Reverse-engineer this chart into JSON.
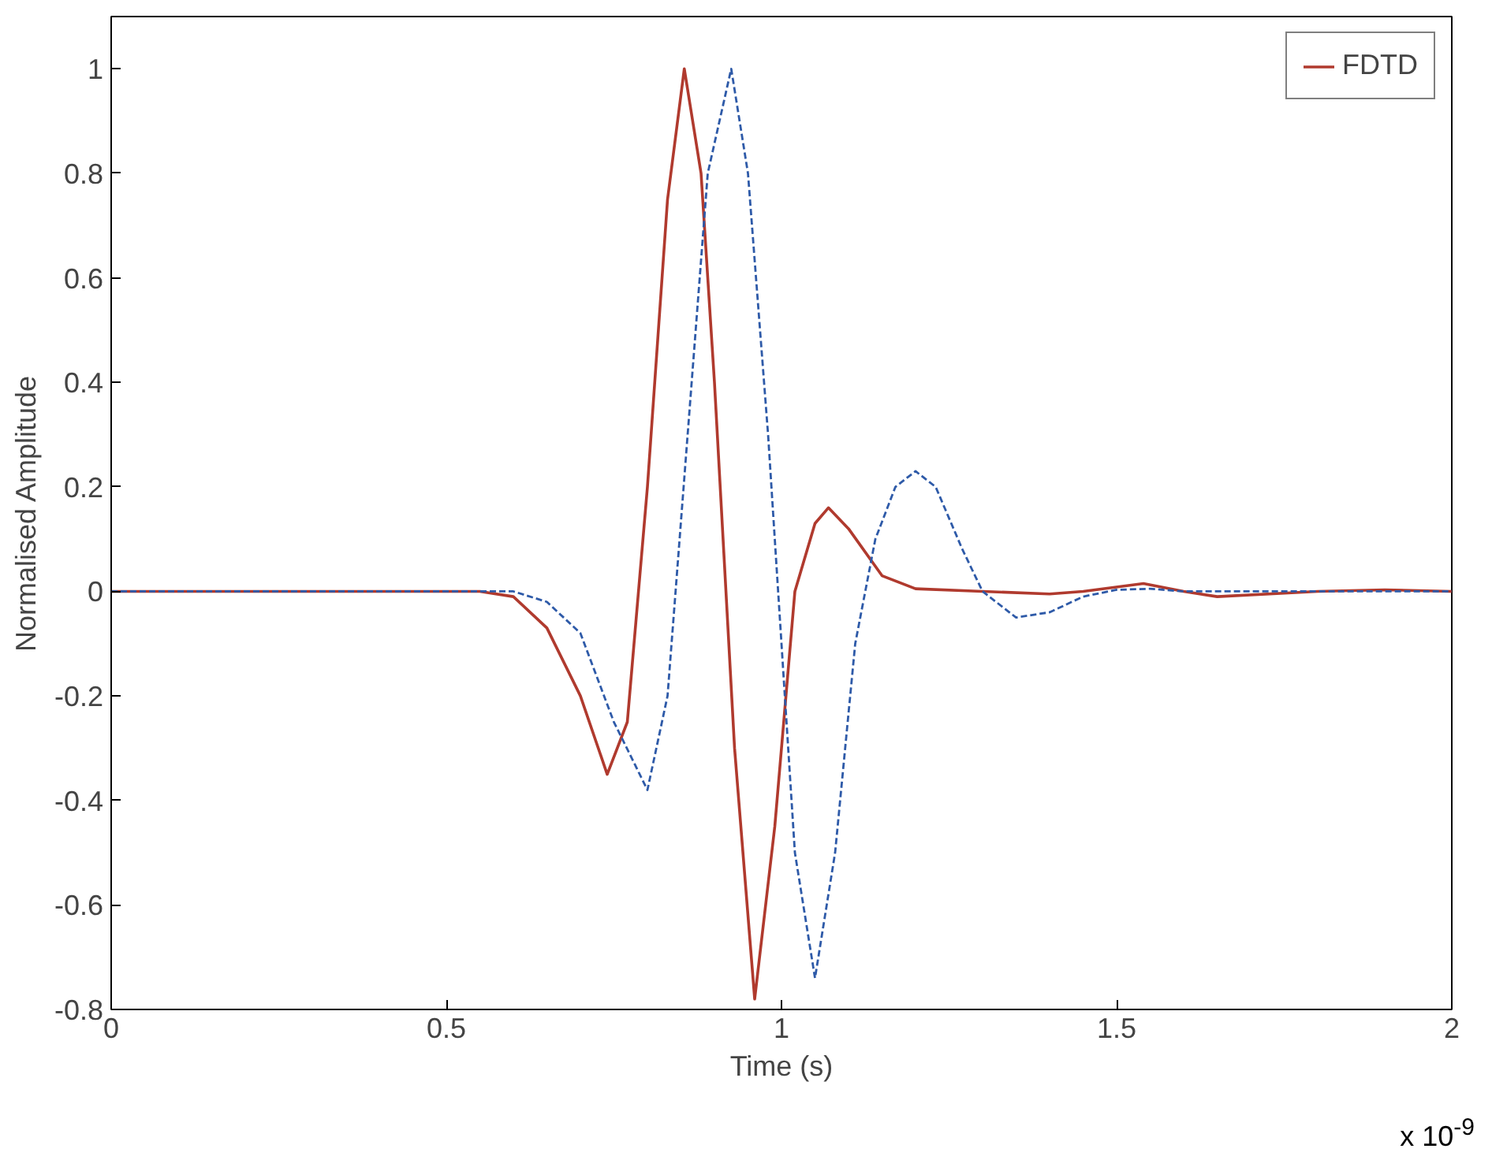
{
  "chart_data": {
    "type": "line",
    "xlabel": "Time (s)",
    "ylabel": "Normalised Amplitude",
    "annotations": [
      "x 10$^{-9}$"
    ],
    "xlim": [
      0,
      2
    ],
    "xticks": [
      0,
      0.5,
      1,
      1.5,
      2
    ],
    "ylim": [
      -0.8,
      1.1
    ],
    "yticks": [
      -0.8,
      -0.6,
      -0.4,
      -0.2,
      0,
      0.2,
      0.4,
      0.6,
      0.8,
      1
    ],
    "grid": false,
    "legend": "top right",
    "marker": "none",
    "series": [
      {
        "name": "FDTD",
        "color": "#b03a2e",
        "line_style": "solid",
        "x": [
          0,
          0.55,
          0.6,
          0.65,
          0.7,
          0.74,
          0.77,
          0.8,
          0.83,
          0.855,
          0.88,
          0.9,
          0.93,
          0.96,
          0.99,
          1.02,
          1.05,
          1.07,
          1.1,
          1.15,
          1.2,
          1.3,
          1.4,
          1.45,
          1.54,
          1.6,
          1.65,
          1.8,
          1.9,
          2.0
        ],
        "values": [
          0,
          0,
          -0.01,
          -0.07,
          -0.2,
          -0.35,
          -0.25,
          0.2,
          0.75,
          1.0,
          0.8,
          0.4,
          -0.3,
          -0.78,
          -0.45,
          0.0,
          0.13,
          0.16,
          0.12,
          0.03,
          0.005,
          0.0,
          -0.005,
          0.0,
          0.015,
          0.0,
          -0.01,
          0,
          0.003,
          0
        ]
      },
      {
        "color": "#2e5aa8",
        "line_style": "dashed",
        "x": [
          0,
          0.6,
          0.65,
          0.7,
          0.75,
          0.8,
          0.83,
          0.86,
          0.89,
          0.925,
          0.95,
          0.98,
          1.0,
          1.02,
          1.05,
          1.08,
          1.11,
          1.14,
          1.17,
          1.2,
          1.23,
          1.27,
          1.3,
          1.35,
          1.4,
          1.45,
          1.5,
          1.55,
          1.6,
          2.0
        ],
        "values": [
          0,
          0,
          -0.02,
          -0.08,
          -0.25,
          -0.38,
          -0.2,
          0.3,
          0.8,
          1.0,
          0.8,
          0.3,
          -0.1,
          -0.5,
          -0.74,
          -0.5,
          -0.1,
          0.1,
          0.2,
          0.23,
          0.2,
          0.08,
          0.0,
          -0.05,
          -0.04,
          -0.01,
          0.003,
          0.005,
          0,
          0
        ]
      }
    ]
  }
}
